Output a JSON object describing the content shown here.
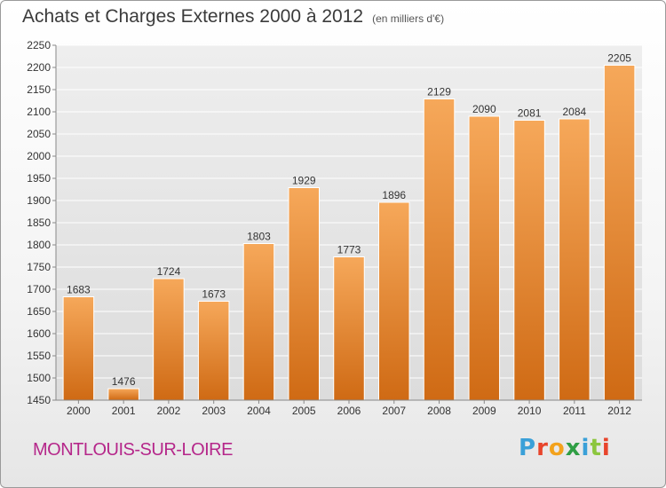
{
  "title": "Achats et Charges Externes 2000 à 2012",
  "unit_note": "(en milliers d'€)",
  "town": "MONTLOUIS-SUR-LOIRE",
  "brand": {
    "letters": [
      "P",
      "r",
      "o",
      "x",
      "i",
      "t",
      "i"
    ],
    "colors": [
      "#3aa0d8",
      "#e8452c",
      "#f3a21c",
      "#2f9e44",
      "#3aa0d8",
      "#8cc63e",
      "#e8452c"
    ]
  },
  "colors": {
    "bar_top": "#f6a85a",
    "bar_bottom": "#cf6a14",
    "title": "#3b3b3b",
    "town": "#b5278a"
  },
  "chart_data": {
    "type": "bar",
    "title": "Achats et Charges Externes 2000 à 2012",
    "categories": [
      "2000",
      "2001",
      "2002",
      "2003",
      "2004",
      "2005",
      "2006",
      "2007",
      "2008",
      "2009",
      "2010",
      "2011",
      "2012"
    ],
    "values": [
      1683,
      1476,
      1724,
      1673,
      1803,
      1929,
      1773,
      1896,
      2129,
      2090,
      2081,
      2084,
      2205
    ],
    "ylim": [
      1450,
      2250
    ],
    "ytick_step": 50,
    "grid": true,
    "data_labels": true
  }
}
